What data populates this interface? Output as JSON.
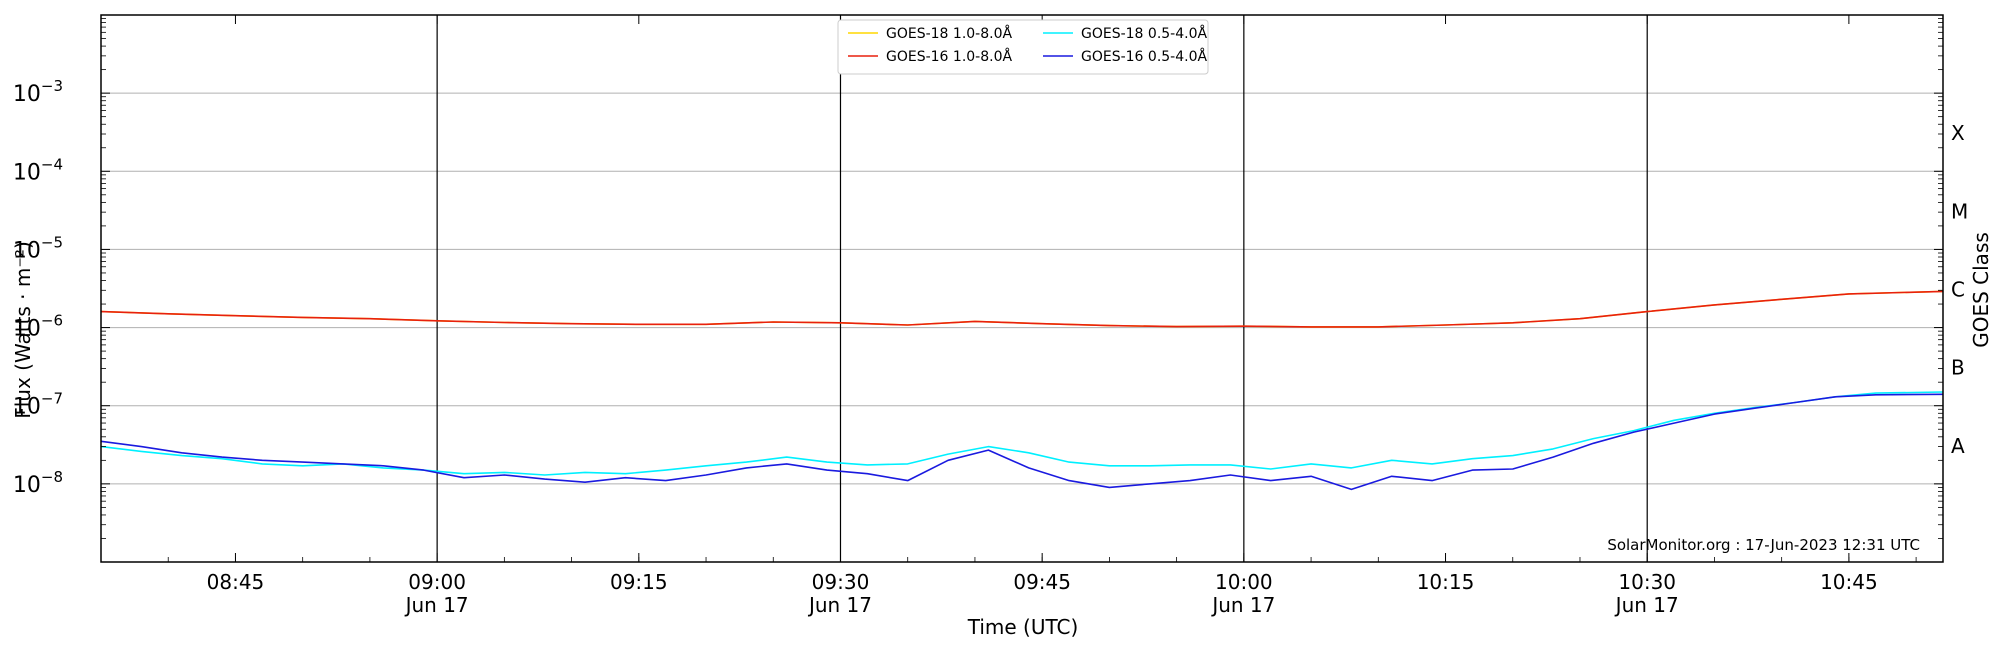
{
  "chart_data": {
    "type": "line",
    "ylabel": "Flux (Watts · m⁻²)",
    "xlabel": "Time (UTC)",
    "right_label": "GOES Class",
    "watermark": "SolarMonitor.org : 17-Jun-2023 12:31 UTC",
    "y_scale": "log",
    "ylim": [
      1e-09,
      0.01
    ],
    "xlim": [
      "08:35",
      "10:52"
    ],
    "grid": "horizontal at decades",
    "legend_position": "top-center",
    "y_ticks": [
      {
        "value": 1e-08,
        "base": "10",
        "exp": "−8"
      },
      {
        "value": 1e-07,
        "base": "10",
        "exp": "−7"
      },
      {
        "value": 1e-06,
        "base": "10",
        "exp": "−6"
      },
      {
        "value": 1e-05,
        "base": "10",
        "exp": "−5"
      },
      {
        "value": 0.0001,
        "base": "10",
        "exp": "−4"
      },
      {
        "value": 0.001,
        "base": "10",
        "exp": "−3"
      }
    ],
    "class_labels": [
      {
        "label": "A",
        "value": 3.16e-08
      },
      {
        "label": "B",
        "value": 3.16e-07
      },
      {
        "label": "C",
        "value": 3.16e-06
      },
      {
        "label": "M",
        "value": 3.16e-05
      },
      {
        "label": "X",
        "value": 0.000316
      }
    ],
    "x_ticks": [
      {
        "time": "08:45",
        "label": "08:45",
        "date": ""
      },
      {
        "time": "09:00",
        "label": "09:00",
        "date": "Jun 17"
      },
      {
        "time": "09:15",
        "label": "09:15",
        "date": ""
      },
      {
        "time": "09:30",
        "label": "09:30",
        "date": "Jun 17"
      },
      {
        "time": "09:45",
        "label": "09:45",
        "date": ""
      },
      {
        "time": "10:00",
        "label": "10:00",
        "date": "Jun 17"
      },
      {
        "time": "10:15",
        "label": "10:15",
        "date": ""
      },
      {
        "time": "10:30",
        "label": "10:30",
        "date": "Jun 17"
      },
      {
        "time": "10:45",
        "label": "10:45",
        "date": ""
      }
    ],
    "vlines": [
      "09:00",
      "09:30",
      "10:00",
      "10:30"
    ],
    "series": [
      {
        "name": "GOES-18 1.0-8.0Å",
        "color": "#ffd700",
        "x": [
          "08:35",
          "08:40",
          "08:45",
          "08:50",
          "08:55",
          "09:00",
          "09:05",
          "09:10",
          "09:15",
          "09:20",
          "09:25",
          "09:30",
          "09:35",
          "09:40",
          "09:45",
          "09:50",
          "09:55",
          "10:00",
          "10:05",
          "10:10",
          "10:15",
          "10:20",
          "10:25",
          "10:30",
          "10:35",
          "10:40",
          "10:45",
          "10:52"
        ],
        "y": [
          1.6e-06,
          1.5e-06,
          1.42e-06,
          1.35e-06,
          1.3e-06,
          1.22e-06,
          1.16e-06,
          1.12e-06,
          1.1e-06,
          1.1e-06,
          1.18e-06,
          1.15e-06,
          1.08e-06,
          1.2e-06,
          1.12e-06,
          1.06e-06,
          1.03e-06,
          1.04e-06,
          1.02e-06,
          1.02e-06,
          1.08e-06,
          1.15e-06,
          1.3e-06,
          1.6e-06,
          1.95e-06,
          2.3e-06,
          2.7e-06,
          2.9e-06
        ]
      },
      {
        "name": "GOES-16 1.0-8.0Å",
        "color": "#e8200e",
        "x": [
          "08:35",
          "08:40",
          "08:45",
          "08:50",
          "08:55",
          "09:00",
          "09:05",
          "09:10",
          "09:15",
          "09:20",
          "09:25",
          "09:30",
          "09:35",
          "09:40",
          "09:45",
          "09:50",
          "09:55",
          "10:00",
          "10:05",
          "10:10",
          "10:15",
          "10:20",
          "10:25",
          "10:30",
          "10:35",
          "10:40",
          "10:45",
          "10:52"
        ],
        "y": [
          1.6e-06,
          1.5e-06,
          1.42e-06,
          1.35e-06,
          1.3e-06,
          1.22e-06,
          1.16e-06,
          1.12e-06,
          1.1e-06,
          1.1e-06,
          1.18e-06,
          1.15e-06,
          1.08e-06,
          1.2e-06,
          1.12e-06,
          1.06e-06,
          1.03e-06,
          1.04e-06,
          1.02e-06,
          1.02e-06,
          1.08e-06,
          1.15e-06,
          1.3e-06,
          1.6e-06,
          1.95e-06,
          2.3e-06,
          2.7e-06,
          2.9e-06
        ]
      },
      {
        "name": "GOES-18 0.5-4.0Å",
        "color": "#00f0ff",
        "x": [
          "08:35",
          "08:38",
          "08:41",
          "08:44",
          "08:47",
          "08:50",
          "08:53",
          "08:56",
          "08:59",
          "09:02",
          "09:05",
          "09:08",
          "09:11",
          "09:14",
          "09:17",
          "09:20",
          "09:23",
          "09:26",
          "09:29",
          "09:32",
          "09:35",
          "09:38",
          "09:41",
          "09:44",
          "09:47",
          "09:50",
          "09:53",
          "09:56",
          "09:59",
          "10:02",
          "10:05",
          "10:08",
          "10:11",
          "10:14",
          "10:17",
          "10:20",
          "10:23",
          "10:26",
          "10:29",
          "10:32",
          "10:35",
          "10:38",
          "10:41",
          "10:44",
          "10:47",
          "10:52"
        ],
        "y": [
          3e-08,
          2.6e-08,
          2.3e-08,
          2.1e-08,
          1.8e-08,
          1.7e-08,
          1.8e-08,
          1.6e-08,
          1.5e-08,
          1.35e-08,
          1.4e-08,
          1.3e-08,
          1.4e-08,
          1.35e-08,
          1.5e-08,
          1.7e-08,
          1.9e-08,
          2.2e-08,
          1.9e-08,
          1.75e-08,
          1.8e-08,
          2.4e-08,
          3e-08,
          2.5e-08,
          1.9e-08,
          1.7e-08,
          1.7e-08,
          1.75e-08,
          1.75e-08,
          1.55e-08,
          1.8e-08,
          1.6e-08,
          2e-08,
          1.8e-08,
          2.1e-08,
          2.3e-08,
          2.8e-08,
          3.8e-08,
          4.8e-08,
          6.5e-08,
          8e-08,
          9.5e-08,
          1.1e-07,
          1.3e-07,
          1.45e-07,
          1.5e-07
        ]
      },
      {
        "name": "GOES-16 0.5-4.0Å",
        "color": "#1a1adf",
        "x": [
          "08:35",
          "08:38",
          "08:41",
          "08:44",
          "08:47",
          "08:50",
          "08:53",
          "08:56",
          "08:59",
          "09:02",
          "09:05",
          "09:08",
          "09:11",
          "09:14",
          "09:17",
          "09:20",
          "09:23",
          "09:26",
          "09:29",
          "09:32",
          "09:35",
          "09:38",
          "09:41",
          "09:44",
          "09:47",
          "09:50",
          "09:53",
          "09:56",
          "09:59",
          "10:02",
          "10:05",
          "10:08",
          "10:11",
          "10:14",
          "10:17",
          "10:20",
          "10:23",
          "10:26",
          "10:29",
          "10:32",
          "10:35",
          "10:38",
          "10:41",
          "10:44",
          "10:47",
          "10:52"
        ],
        "y": [
          3.5e-08,
          3e-08,
          2.5e-08,
          2.2e-08,
          2e-08,
          1.9e-08,
          1.8e-08,
          1.7e-08,
          1.5e-08,
          1.2e-08,
          1.3e-08,
          1.15e-08,
          1.05e-08,
          1.2e-08,
          1.1e-08,
          1.3e-08,
          1.6e-08,
          1.8e-08,
          1.5e-08,
          1.35e-08,
          1.1e-08,
          2e-08,
          2.7e-08,
          1.6e-08,
          1.1e-08,
          9e-09,
          1e-08,
          1.1e-08,
          1.3e-08,
          1.1e-08,
          1.25e-08,
          8.5e-09,
          1.25e-08,
          1.1e-08,
          1.5e-08,
          1.55e-08,
          2.2e-08,
          3.3e-08,
          4.6e-08,
          6e-08,
          7.8e-08,
          9.3e-08,
          1.1e-07,
          1.3e-07,
          1.38e-07,
          1.4e-07
        ]
      }
    ]
  }
}
